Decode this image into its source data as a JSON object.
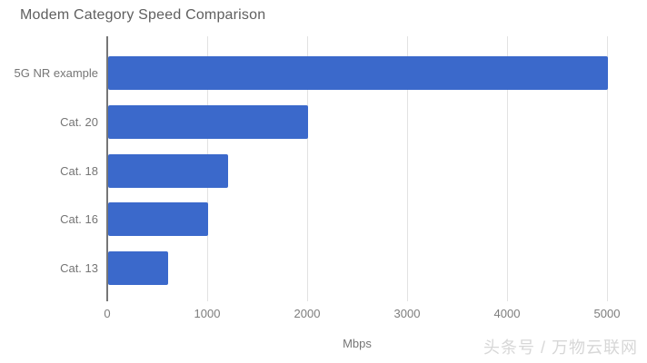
{
  "watermark": "头条号 / 万物云联网",
  "chart_data": {
    "type": "bar",
    "orientation": "horizontal",
    "title": "Modem Category Speed Comparison",
    "categories": [
      "5G NR example",
      "Cat. 20",
      "Cat. 18",
      "Cat. 16",
      "Cat. 13"
    ],
    "values": [
      5000,
      2000,
      1200,
      1000,
      600
    ],
    "xlabel": "Mbps",
    "ylabel": "",
    "xlim": [
      0,
      5000
    ],
    "xticks": [
      0,
      1000,
      2000,
      3000,
      4000,
      5000
    ],
    "grid": true,
    "legend": "none",
    "bar_color": "#3b69cb",
    "title_color": "#5f5f5f",
    "axis_text_color": "#757575",
    "gridline_color": "#e2e2e2",
    "zero_axis_color": "#767676"
  }
}
